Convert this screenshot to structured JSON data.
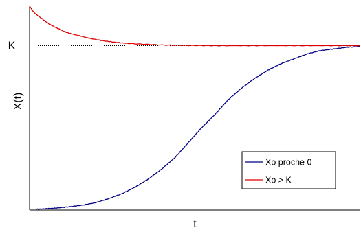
{
  "chart_data": {
    "type": "line",
    "xlabel": "t",
    "ylabel": "X(t)",
    "ytick_labels": [
      {
        "value": 1.0,
        "label": "K"
      }
    ],
    "xlim": [
      0,
      100
    ],
    "ylim": [
      0,
      1.24
    ],
    "grid": false,
    "legend_position": "bottom-right",
    "reference_lines": [
      {
        "axis": "y",
        "value": 1.0,
        "style": "dotted",
        "color": "#000000"
      }
    ],
    "series": [
      {
        "name": "Xo proche 0",
        "color": "#000080",
        "x": [
          2,
          5,
          8,
          12,
          16,
          20,
          24,
          28,
          32,
          36,
          40,
          44,
          48,
          52,
          56,
          60,
          64,
          68,
          72,
          76,
          80,
          84,
          88,
          92,
          96,
          100
        ],
        "y": [
          0.005,
          0.008,
          0.012,
          0.02,
          0.03,
          0.045,
          0.07,
          0.1,
          0.14,
          0.19,
          0.25,
          0.32,
          0.41,
          0.5,
          0.58,
          0.67,
          0.74,
          0.8,
          0.85,
          0.89,
          0.92,
          0.95,
          0.97,
          0.98,
          0.99,
          0.995
        ]
      },
      {
        "name": "Xo > K",
        "color": "#dd0000",
        "x": [
          0,
          1,
          2,
          4,
          6,
          8,
          10,
          12,
          15,
          18,
          22,
          26,
          30,
          35,
          40,
          45,
          50,
          55,
          60,
          70,
          80,
          90,
          100
        ],
        "y": [
          1.24,
          1.21,
          1.19,
          1.16,
          1.13,
          1.11,
          1.09,
          1.075,
          1.06,
          1.045,
          1.03,
          1.02,
          1.013,
          1.008,
          1.004,
          1.002,
          1.001,
          1.0,
          1.0,
          1.0,
          1.0,
          1.0,
          1.0
        ]
      }
    ]
  }
}
